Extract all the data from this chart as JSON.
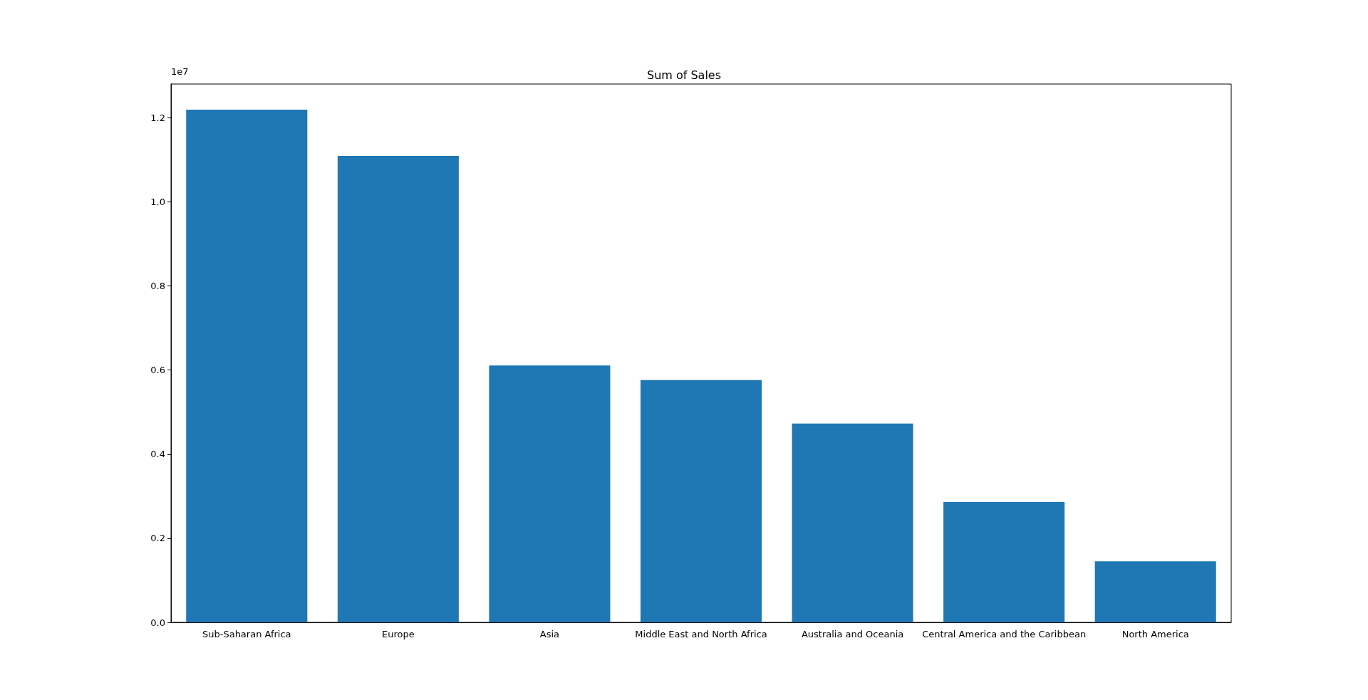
{
  "chart_data": {
    "type": "bar",
    "title": "Sum of Sales",
    "categories": [
      "Sub-Saharan Africa",
      "Europe",
      "Asia",
      "Middle East and North Africa",
      "Australia and Oceania",
      "Central America and the Caribbean",
      "North America"
    ],
    "values": [
      1.219,
      1.109,
      0.611,
      0.576,
      0.473,
      0.286,
      0.145
    ],
    "color": "#1f77b4",
    "ylim": [
      0,
      1.28
    ],
    "yticks": [
      {
        "value": 0,
        "label": "0.0"
      },
      {
        "value": 0.2,
        "label": "0.2"
      },
      {
        "value": 0.4,
        "label": "0.4"
      },
      {
        "value": 0.6,
        "label": "0.6"
      },
      {
        "value": 0.8,
        "label": "0.8"
      },
      {
        "value": 1,
        "label": "1.0"
      },
      {
        "value": 1.2,
        "label": "1.2"
      }
    ],
    "annotations": [
      "1e7"
    ],
    "grid": false
  }
}
